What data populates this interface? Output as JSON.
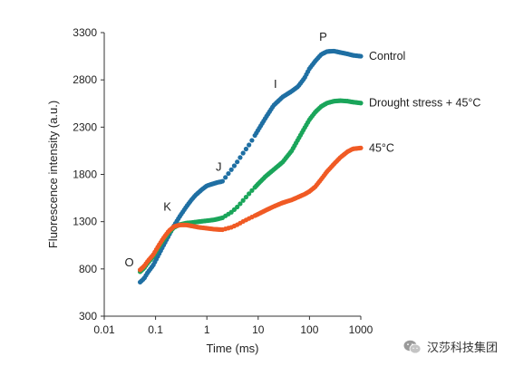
{
  "chart_data": {
    "type": "scatter",
    "title": "",
    "xlabel": "Time (ms)",
    "ylabel": "Fluorescence intensity (a.u.)",
    "x_scale": "log",
    "xlim": [
      0.01,
      1000
    ],
    "ylim": [
      300,
      3300
    ],
    "x_ticks": [
      "0.01",
      "0.1",
      "1",
      "10",
      "100",
      "1000"
    ],
    "y_ticks": [
      "300",
      "800",
      "1300",
      "1800",
      "2300",
      "2800",
      "3300"
    ],
    "grid": false,
    "legend": "inline labels at right end of each curve",
    "series": [
      {
        "name": "Control",
        "color": "#1f6fa3",
        "x": [
          0.05,
          0.06,
          0.07,
          0.09,
          0.11,
          0.14,
          0.18,
          0.23,
          0.3,
          0.4,
          0.5,
          0.6,
          0.8,
          1.0,
          1.3,
          1.6,
          2.0,
          3.0,
          4.0,
          5.0,
          7.0,
          10,
          14,
          20,
          30,
          45,
          60,
          80,
          100,
          130,
          170,
          220,
          300,
          400,
          550,
          700,
          1000
        ],
        "y": [
          660,
          700,
          760,
          840,
          930,
          1040,
          1150,
          1260,
          1360,
          1460,
          1530,
          1580,
          1640,
          1680,
          1700,
          1715,
          1725,
          1850,
          1940,
          2020,
          2130,
          2270,
          2400,
          2530,
          2620,
          2680,
          2730,
          2820,
          2920,
          3000,
          3070,
          3100,
          3105,
          3090,
          3075,
          3060,
          3050
        ]
      },
      {
        "name": "Drought stress + 45°C",
        "color": "#1aa55a",
        "x": [
          0.05,
          0.06,
          0.07,
          0.09,
          0.11,
          0.14,
          0.18,
          0.23,
          0.3,
          0.4,
          0.5,
          0.7,
          1.0,
          1.4,
          2.0,
          3.0,
          4.0,
          5.0,
          7.0,
          10,
          14,
          20,
          30,
          45,
          60,
          80,
          100,
          130,
          170,
          220,
          300,
          400,
          550,
          700,
          1000
        ],
        "y": [
          770,
          810,
          860,
          930,
          1010,
          1100,
          1180,
          1240,
          1270,
          1285,
          1290,
          1300,
          1310,
          1320,
          1340,
          1400,
          1460,
          1520,
          1610,
          1700,
          1780,
          1850,
          1930,
          2050,
          2170,
          2290,
          2380,
          2460,
          2520,
          2555,
          2575,
          2580,
          2575,
          2565,
          2555
        ]
      },
      {
        "name": "45°C",
        "color": "#f05a24",
        "x": [
          0.05,
          0.06,
          0.07,
          0.09,
          0.11,
          0.14,
          0.18,
          0.23,
          0.3,
          0.4,
          0.5,
          0.7,
          1.0,
          1.4,
          2.0,
          3.0,
          4.0,
          5.0,
          7.0,
          10,
          14,
          20,
          30,
          45,
          60,
          80,
          100,
          130,
          170,
          220,
          300,
          400,
          550,
          700,
          1000
        ],
        "y": [
          790,
          830,
          880,
          950,
          1030,
          1120,
          1200,
          1250,
          1265,
          1265,
          1255,
          1240,
          1230,
          1220,
          1215,
          1240,
          1270,
          1300,
          1340,
          1380,
          1420,
          1460,
          1500,
          1530,
          1560,
          1590,
          1620,
          1670,
          1750,
          1830,
          1910,
          1980,
          2040,
          2070,
          2080
        ]
      }
    ],
    "annotations": [
      {
        "label": "O",
        "x": 0.05,
        "y": 770
      },
      {
        "label": "K",
        "x": 0.2,
        "y": 1300
      },
      {
        "label": "J",
        "x": 2.0,
        "y": 1725
      },
      {
        "label": "I",
        "x": 30,
        "y": 2620
      },
      {
        "label": "P",
        "x": 200,
        "y": 3100
      }
    ]
  },
  "watermark": {
    "text": "汉莎科技集团",
    "icon": "wechat-logo"
  }
}
